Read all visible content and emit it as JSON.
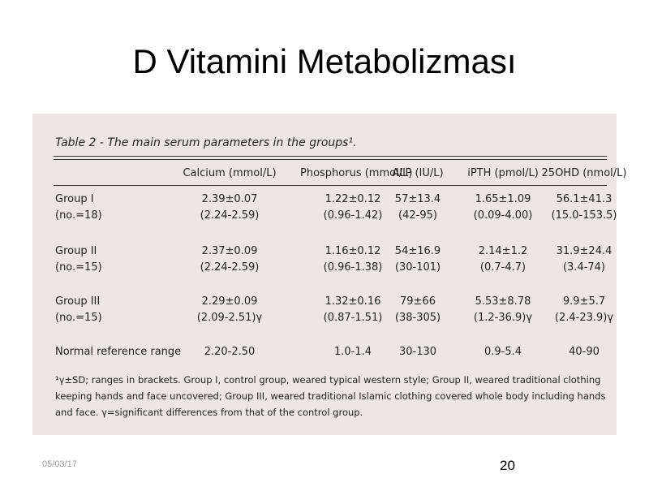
{
  "slide": {
    "title": "D Vitamini Metabolizması",
    "date": "05/03/17",
    "page_number": "20"
  },
  "table": {
    "caption": "Table 2 - The main serum parameters in the groups¹.",
    "headers": [
      "Calcium (mmol/L)",
      "Phosphorus (mmol/L)",
      "ALP (IU/L)",
      "iPTH (pmol/L)",
      "25OHD (nmol/L)"
    ],
    "rows": [
      {
        "label": [
          "Group I",
          "(no.=18)"
        ],
        "cells": [
          [
            "2.39±0.07",
            "(2.24-2.59)"
          ],
          [
            "1.22±0.12",
            "(0.96-1.42)"
          ],
          [
            "57±13.4",
            "(42-95)"
          ],
          [
            "1.65±1.09",
            "(0.09-4.00)"
          ],
          [
            "56.1±41.3",
            "(15.0-153.5)"
          ]
        ]
      },
      {
        "label": [
          "Group II",
          "(no.=15)"
        ],
        "cells": [
          [
            "2.37±0.09",
            "(2.24-2.59)"
          ],
          [
            "1.16±0.12",
            "(0.96-1.38)"
          ],
          [
            "54±16.9",
            "(30-101)"
          ],
          [
            "2.14±1.2",
            "(0.7-4.7)"
          ],
          [
            "31.9±24.4",
            "(3.4-74)"
          ]
        ]
      },
      {
        "label": [
          "Group III",
          "(no.=15)"
        ],
        "cells": [
          [
            "2.29±0.09",
            "(2.09-2.51)γ"
          ],
          [
            "1.32±0.16",
            "(0.87-1.51)"
          ],
          [
            "79±66",
            "(38-305)"
          ],
          [
            "5.53±8.78",
            "(1.2-36.9)γ"
          ],
          [
            "9.9±5.7",
            "(2.4-23.9)γ"
          ]
        ]
      },
      {
        "label": [
          "Normal reference range"
        ],
        "cells": [
          [
            "2.20-2.50"
          ],
          [
            "1.0-1.4"
          ],
          [
            "30-130"
          ],
          [
            "0.9-5.4"
          ],
          [
            "40-90"
          ]
        ]
      }
    ],
    "footnote": "¹γ±SD; ranges in brackets. Group I, control group, weared typical western style; Group II, weared traditional clothing keeping hands and face uncovered; Group III, weared traditional Islamic clothing covered whole body including hands and face. γ=significant differences from that of the control group."
  }
}
